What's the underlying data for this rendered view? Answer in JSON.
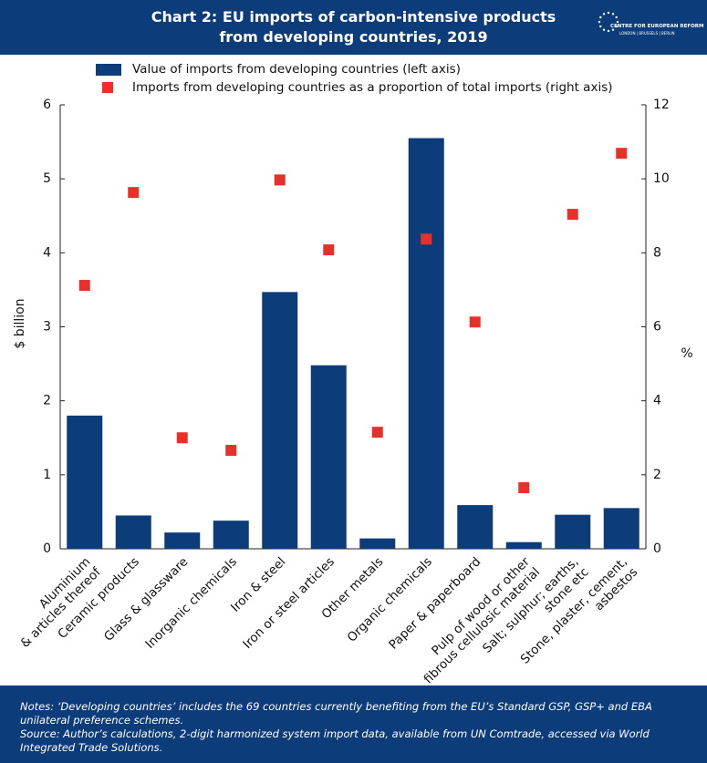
{
  "header": {
    "logo": {
      "name": "CENTRE FOR EUROPEAN REFORM",
      "cities": "LONDON | BRUSSELS | BERLIN"
    }
  },
  "chart_data": {
    "type": "bar",
    "title": [
      "Chart 2: EU imports of carbon-intensive products",
      "from developing countries, 2019"
    ],
    "categories": [
      [
        "Aluminium",
        "& articles thereof"
      ],
      [
        "Ceramic products"
      ],
      [
        "Glass & glassware"
      ],
      [
        "Inorganic chemicals"
      ],
      [
        "Iron & steel"
      ],
      [
        "Iron or steel articles"
      ],
      [
        "Other metals"
      ],
      [
        "Organic chemicals"
      ],
      [
        "Paper & paperboard"
      ],
      [
        "Pulp of wood or other",
        "fibrous cellulosic material"
      ],
      [
        "Salt; sulphur; earths,",
        "stone etc"
      ],
      [
        "Stone, plaster, cement,",
        "asbestos"
      ]
    ],
    "series": [
      {
        "name": "Value of imports from developing countries (left axis)",
        "color": "#0d3c7a",
        "values": [
          1.8,
          0.45,
          0.22,
          0.38,
          3.47,
          2.48,
          0.14,
          5.55,
          0.59,
          0.09,
          0.46,
          0.55
        ]
      },
      {
        "name": "Imports from developing countries as a proportion of total imports (right axis)",
        "color": "#e8302a",
        "axis": "y2",
        "values": [
          7.12,
          9.63,
          3.0,
          2.66,
          9.97,
          8.08,
          3.15,
          8.37,
          6.13,
          1.65,
          9.04,
          10.69
        ]
      }
    ],
    "ylabel": "$ billion",
    "y2label": "%",
    "ylim": [
      0,
      6
    ],
    "yticks": [
      0,
      1,
      2,
      3,
      4,
      5,
      6
    ],
    "y2lim": [
      0,
      12
    ],
    "y2ticks": [
      0,
      2,
      4,
      6,
      8,
      10,
      12
    ]
  },
  "footer": {
    "notes": "Notes: ‘Developing countries’ includes the 69 countries currently benefiting from the EU’s Standard GSP, GSP+ and EBA unilateral preference schemes.",
    "source": "Source: Author’s calculations, 2-digit harmonized system import data, available from UN Comtrade, accessed via World Integrated Trade Solutions."
  }
}
